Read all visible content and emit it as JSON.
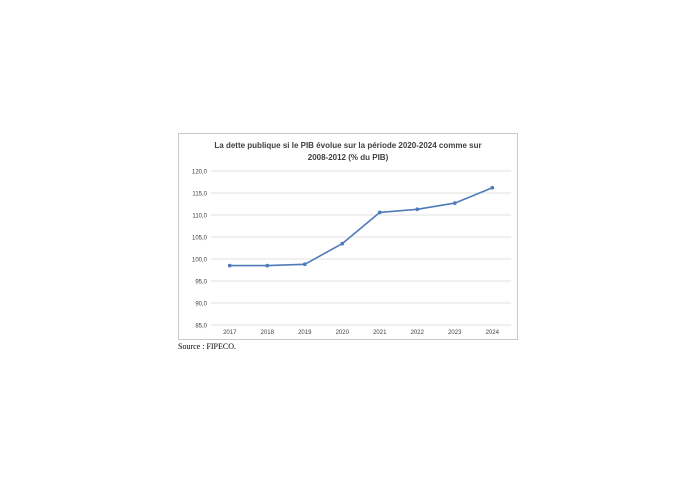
{
  "source_note": "Source : FIPECO.",
  "colors": {
    "line": "#4f7cb8",
    "grid": "#d9d9d9",
    "text": "#404040"
  },
  "chart_data": {
    "type": "line",
    "title_lines": [
      "La dette publique si le PIB évolue sur la période 2020-2024 comme sur",
      "2008-2012 (% du PIB)"
    ],
    "categories": [
      "2017",
      "2018",
      "2019",
      "2020",
      "2021",
      "2022",
      "2023",
      "2024"
    ],
    "series": [
      {
        "values": [
          98.5,
          98.5,
          98.8,
          103.5,
          110.6,
          111.3,
          112.7,
          116.2
        ]
      }
    ],
    "ylim": [
      85,
      120
    ],
    "yticks": [
      "120,0",
      "115,0",
      "110,0",
      "105,0",
      "100,0",
      "95,0",
      "90,0",
      "85,0"
    ],
    "grid": true,
    "legend": "none"
  }
}
